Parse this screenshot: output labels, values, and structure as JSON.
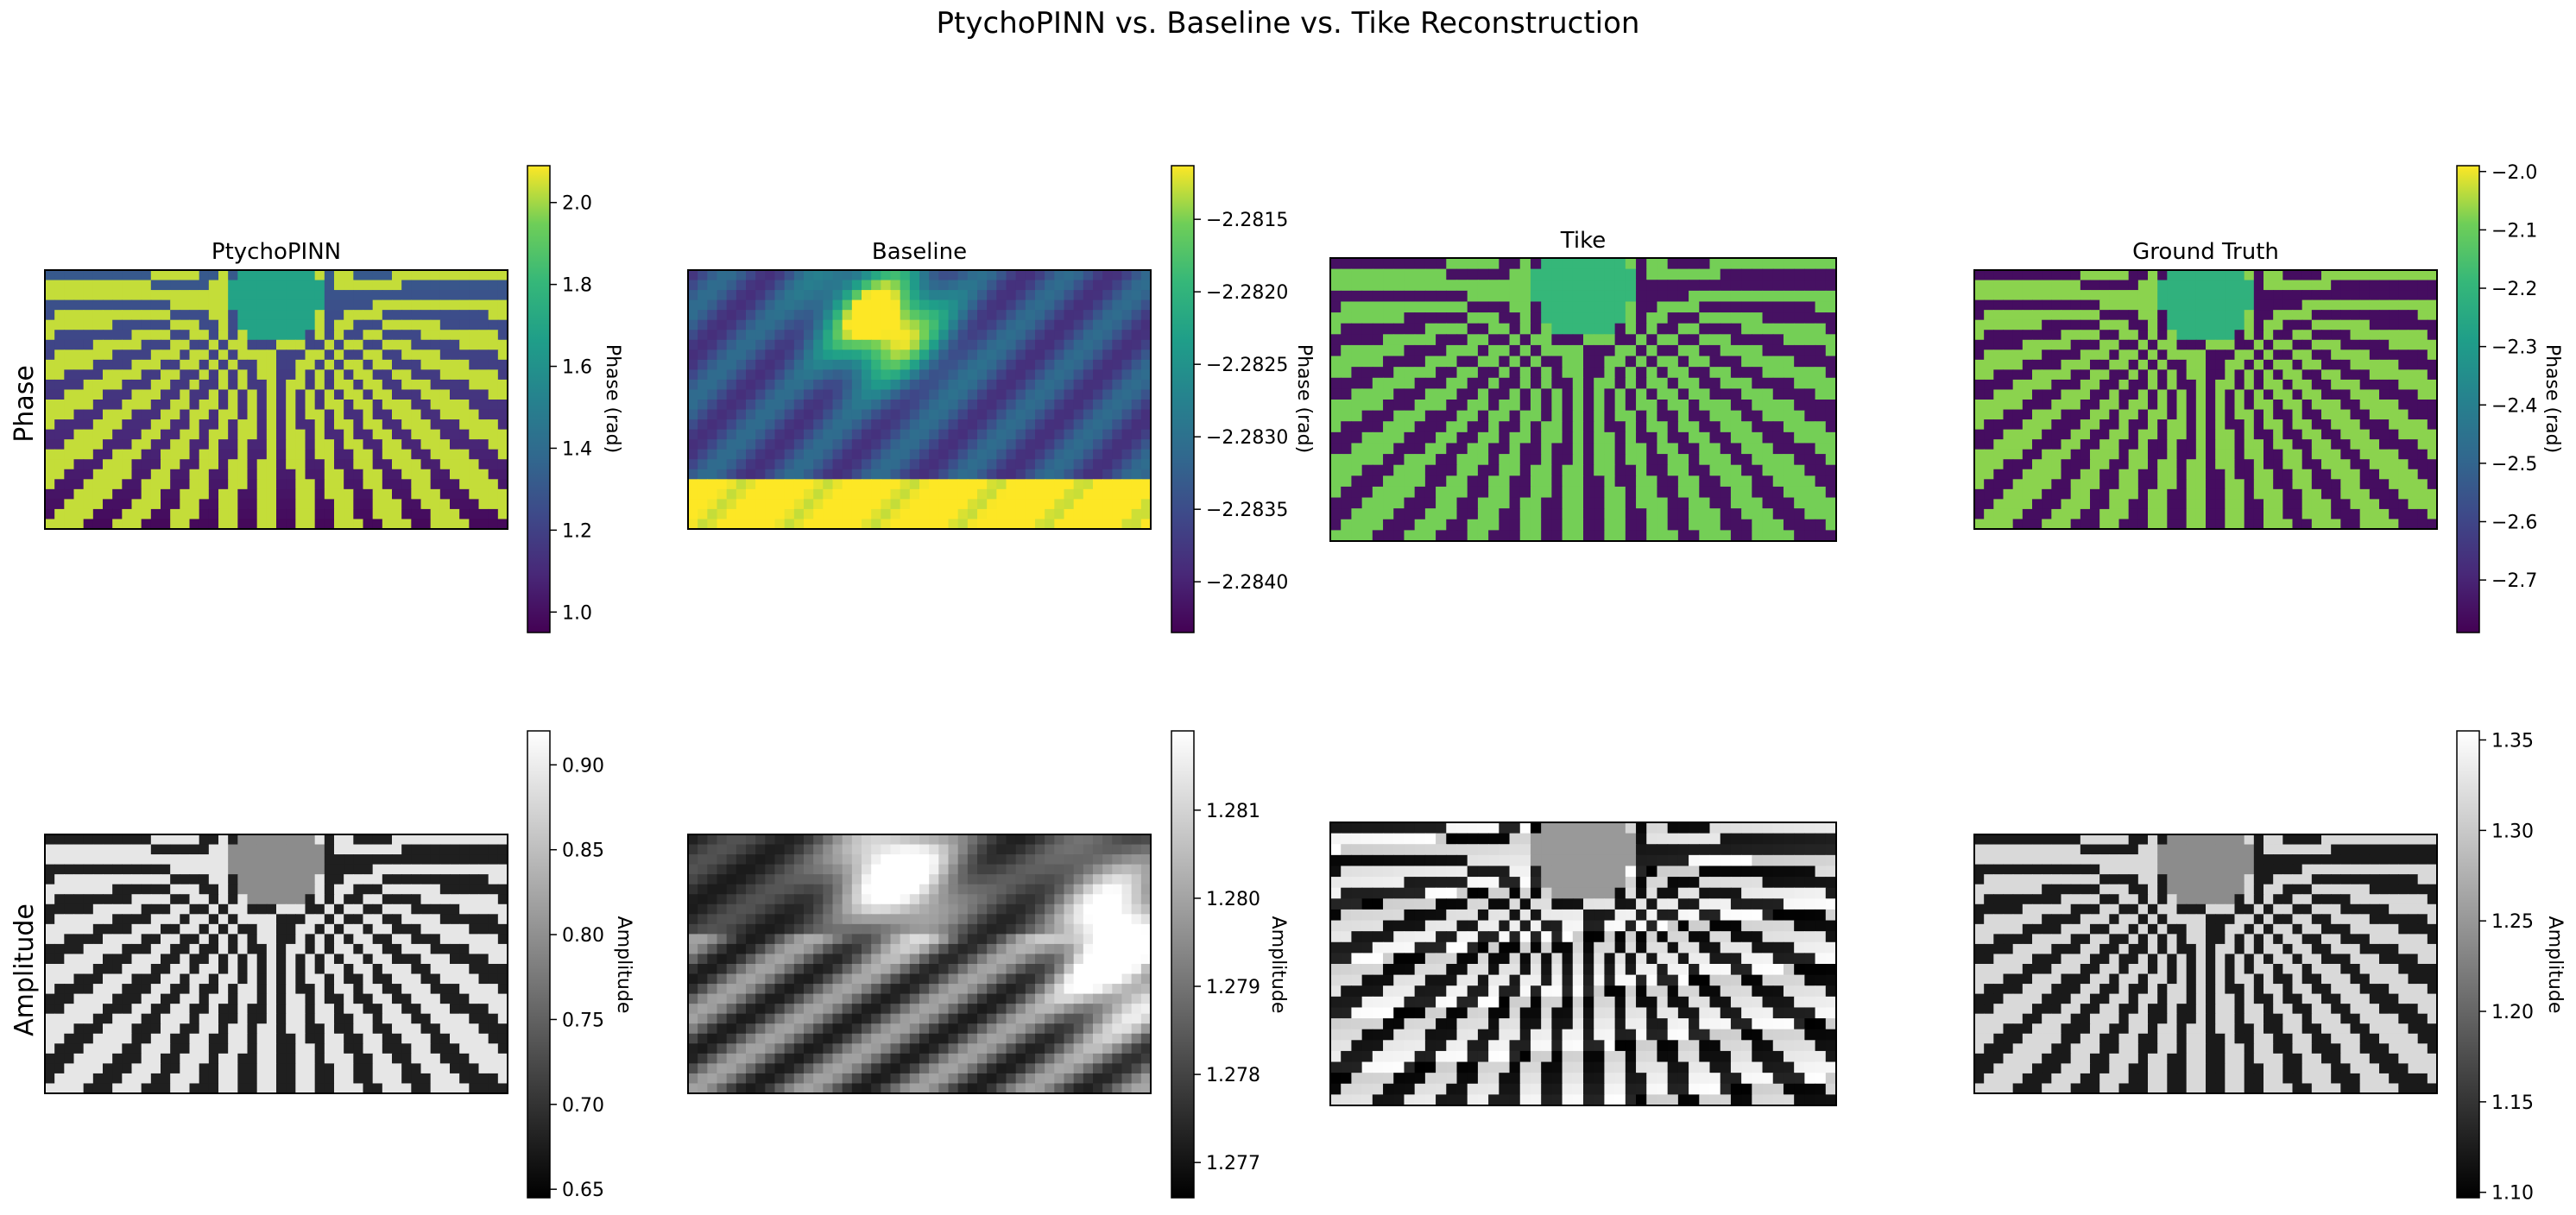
{
  "figure": {
    "title": "PtychoPINN vs. Baseline vs. Tike Reconstruction",
    "row_labels": [
      "Phase",
      "Amplitude"
    ]
  },
  "chart_data": [
    {
      "type": "heatmap",
      "row": "Phase",
      "title": "PtychoPINN",
      "colormap": "viridis",
      "colorbar": {
        "label": "Phase (rad)",
        "range": [
          0.95,
          2.09
        ],
        "ticks": [
          "1.0",
          "1.2",
          "1.4",
          "1.6",
          "1.8",
          "2.0"
        ]
      }
    },
    {
      "type": "heatmap",
      "row": "Phase",
      "title": "Baseline",
      "colormap": "viridis",
      "colorbar": {
        "label": "Phase (rad)",
        "range": [
          -2.28435,
          -2.28113
        ],
        "ticks": [
          "−2.2840",
          "−2.2835",
          "−2.2830",
          "−2.2825",
          "−2.2820",
          "−2.2815"
        ]
      }
    },
    {
      "type": "heatmap",
      "row": "Phase",
      "title": "Tike",
      "colormap": "viridis"
    },
    {
      "type": "heatmap",
      "row": "Phase",
      "title": "Ground Truth",
      "colormap": "viridis",
      "colorbar": {
        "label": "Phase (rad)",
        "range": [
          -2.79,
          -1.99
        ],
        "ticks": [
          "−2.7",
          "−2.6",
          "−2.5",
          "−2.4",
          "−2.3",
          "−2.2",
          "−2.1",
          "−2.0"
        ]
      }
    },
    {
      "type": "heatmap",
      "row": "Amplitude",
      "title": "",
      "colormap": "gray",
      "colorbar": {
        "label": "Amplitude",
        "range": [
          0.645,
          0.92
        ],
        "ticks": [
          "0.65",
          "0.70",
          "0.75",
          "0.80",
          "0.85",
          "0.90"
        ]
      }
    },
    {
      "type": "heatmap",
      "row": "Amplitude",
      "title": "",
      "colormap": "gray",
      "colorbar": {
        "label": "Amplitude",
        "range": [
          1.2766,
          1.2819
        ],
        "ticks": [
          "1.277",
          "1.278",
          "1.279",
          "1.280",
          "1.281"
        ]
      }
    },
    {
      "type": "heatmap",
      "row": "Amplitude",
      "title": "",
      "colormap": "gray"
    },
    {
      "type": "heatmap",
      "row": "Amplitude",
      "title": "",
      "colormap": "gray",
      "colorbar": {
        "label": "Amplitude",
        "range": [
          1.097,
          1.355
        ],
        "ticks": [
          "1.10",
          "1.15",
          "1.20",
          "1.25",
          "1.30",
          "1.35"
        ]
      }
    }
  ]
}
